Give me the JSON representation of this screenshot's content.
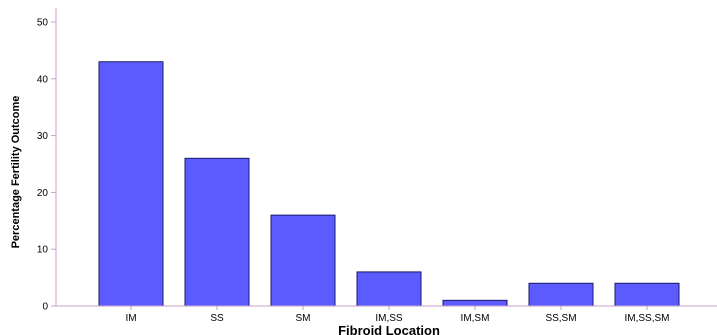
{
  "chart_data": {
    "type": "bar",
    "title": "",
    "xlabel": "Fibroid Location",
    "ylabel": "Percentage Fertility Outcome",
    "categories": [
      "IM",
      "SS",
      "SM",
      "IM,SS",
      "IM,SM",
      "SS,SM",
      "IM,SS,SM"
    ],
    "values": [
      43,
      26,
      16,
      6,
      1,
      4,
      4
    ],
    "ylim": [
      0,
      50
    ],
    "yticks": [
      0,
      10,
      20,
      30,
      40,
      50
    ],
    "grid": false,
    "legend": "none",
    "colors": {
      "bar_fill": "#5b5bff",
      "bar_stroke": "#1a1a66",
      "axis": "#c7a0c7"
    }
  }
}
